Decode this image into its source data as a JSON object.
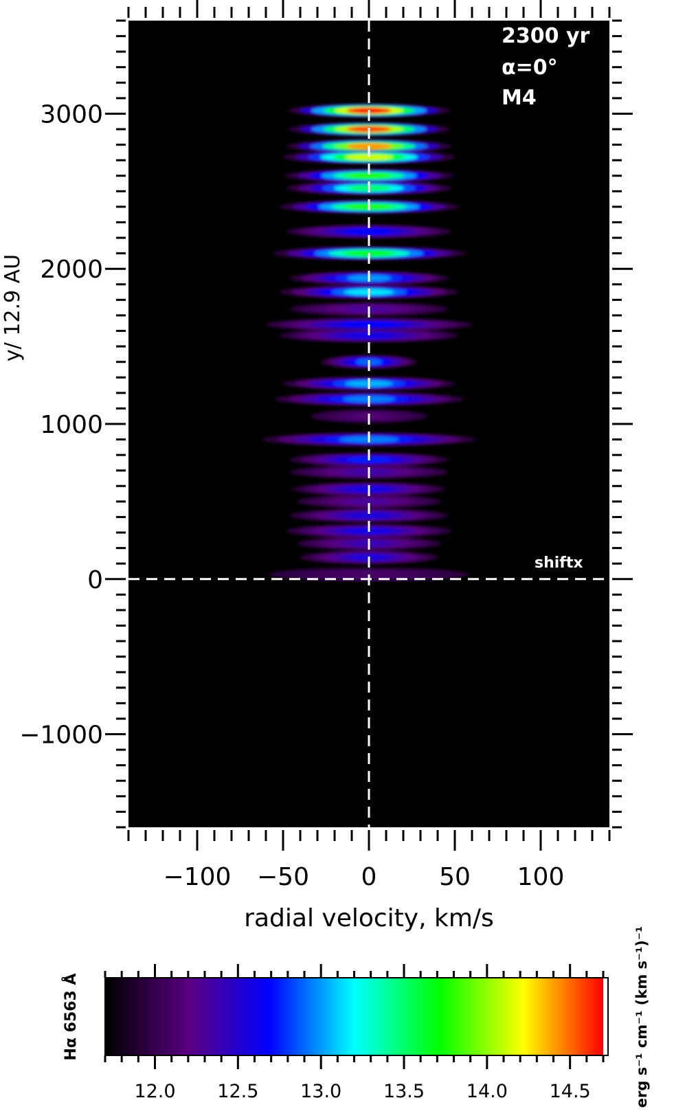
{
  "chart_data": {
    "type": "heatmap",
    "xlabel": "radial velocity, km/s",
    "ylabel": "y/ 12.9 AU",
    "xlim": [
      -140,
      140
    ],
    "ylim": [
      -1600,
      3600
    ],
    "x_ticks": [
      -100,
      -50,
      0,
      50,
      100
    ],
    "x_tick_labels": [
      "−100",
      "−50",
      "0",
      "50",
      "100"
    ],
    "y_ticks": [
      -1000,
      0,
      1000,
      2000,
      3000
    ],
    "y_tick_labels": [
      "−1000",
      "0",
      "1000",
      "2000",
      "3000"
    ],
    "annotations": [
      "2300 yr",
      "α=0°",
      "M4"
    ],
    "marker_label": "shiftx",
    "reference_lines": {
      "x": 0,
      "y": 0,
      "style": "dashed"
    },
    "background": "#000000",
    "emission_bands": [
      {
        "y": 3020,
        "half_width_kms": 47,
        "peak": 14.65
      },
      {
        "y": 2900,
        "half_width_kms": 47,
        "peak": 14.55
      },
      {
        "y": 2790,
        "half_width_kms": 48,
        "peak": 14.4
      },
      {
        "y": 2720,
        "half_width_kms": 50,
        "peak": 14.1
      },
      {
        "y": 2600,
        "half_width_kms": 49,
        "peak": 13.75
      },
      {
        "y": 2520,
        "half_width_kms": 48,
        "peak": 13.5
      },
      {
        "y": 2400,
        "half_width_kms": 52,
        "peak": 13.75
      },
      {
        "y": 2240,
        "half_width_kms": 48,
        "peak": 12.7
      },
      {
        "y": 2100,
        "half_width_kms": 56,
        "peak": 13.65
      },
      {
        "y": 1940,
        "half_width_kms": 46,
        "peak": 13.0
      },
      {
        "y": 1850,
        "half_width_kms": 52,
        "peak": 13.15
      },
      {
        "y": 1740,
        "half_width_kms": 46,
        "peak": 12.3
      },
      {
        "y": 1640,
        "half_width_kms": 60,
        "peak": 12.7
      },
      {
        "y": 1570,
        "half_width_kms": 52,
        "peak": 12.6
      },
      {
        "y": 1400,
        "half_width_kms": 28,
        "peak": 12.9
      },
      {
        "y": 1260,
        "half_width_kms": 50,
        "peak": 13.05
      },
      {
        "y": 1160,
        "half_width_kms": 55,
        "peak": 12.95
      },
      {
        "y": 1050,
        "half_width_kms": 34,
        "peak": 12.15
      },
      {
        "y": 900,
        "half_width_kms": 62,
        "peak": 12.95
      },
      {
        "y": 770,
        "half_width_kms": 46,
        "peak": 12.75
      },
      {
        "y": 690,
        "half_width_kms": 46,
        "peak": 12.35
      },
      {
        "y": 580,
        "half_width_kms": 44,
        "peak": 12.6
      },
      {
        "y": 500,
        "half_width_kms": 42,
        "peak": 12.3
      },
      {
        "y": 410,
        "half_width_kms": 46,
        "peak": 12.55
      },
      {
        "y": 310,
        "half_width_kms": 48,
        "peak": 12.6
      },
      {
        "y": 230,
        "half_width_kms": 42,
        "peak": 12.4
      },
      {
        "y": 140,
        "half_width_kms": 40,
        "peak": 12.55
      },
      {
        "y": 30,
        "half_width_kms": 58,
        "peak": 12.1
      }
    ],
    "colorbar": {
      "label_left": "Hα 6563 Å",
      "label_right": "erg s⁻¹ cm⁻¹ (km s⁻¹)⁻¹",
      "range": [
        11.7,
        14.7
      ],
      "ticks": [
        12.0,
        12.5,
        13.0,
        13.5,
        14.0,
        14.5
      ],
      "tick_labels": [
        "12.0",
        "12.5",
        "13.0",
        "13.5",
        "14.0",
        "14.5"
      ],
      "colormap": [
        "#000000",
        "#5a0082",
        "#0000ff",
        "#00ffff",
        "#00ff00",
        "#ffff00",
        "#ff0000"
      ]
    }
  }
}
